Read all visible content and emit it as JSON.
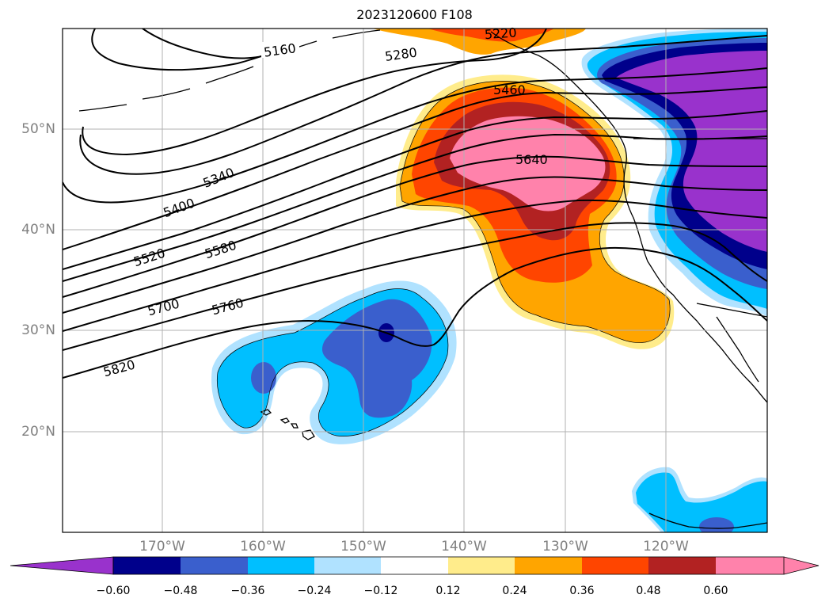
{
  "title": "2023120600 F108",
  "map": {
    "lat_labels": [
      "50°N",
      "40°N",
      "30°N",
      "20°N"
    ],
    "lon_labels": [
      "170°W",
      "160°W",
      "150°W",
      "140°W",
      "130°W",
      "120°W"
    ],
    "contour_labels": [
      "5160",
      "5280",
      "5220",
      "5340",
      "5400",
      "5460",
      "5520",
      "5580",
      "5640",
      "5700",
      "5760",
      "5820"
    ]
  },
  "colorbar": {
    "tick_labels": [
      "−0.60",
      "−0.48",
      "−0.36",
      "−0.24",
      "−0.12",
      "0.12",
      "0.24",
      "0.36",
      "0.48",
      "0.60"
    ],
    "colors": [
      "#9932cc",
      "#00008b",
      "#3a5fcd",
      "#00bfff",
      "#b0e2ff",
      "#ffffff",
      "#ffec8b",
      "#ffa500",
      "#ff4500",
      "#b22222",
      "#ff82ab",
      "#ff82ab"
    ]
  }
}
